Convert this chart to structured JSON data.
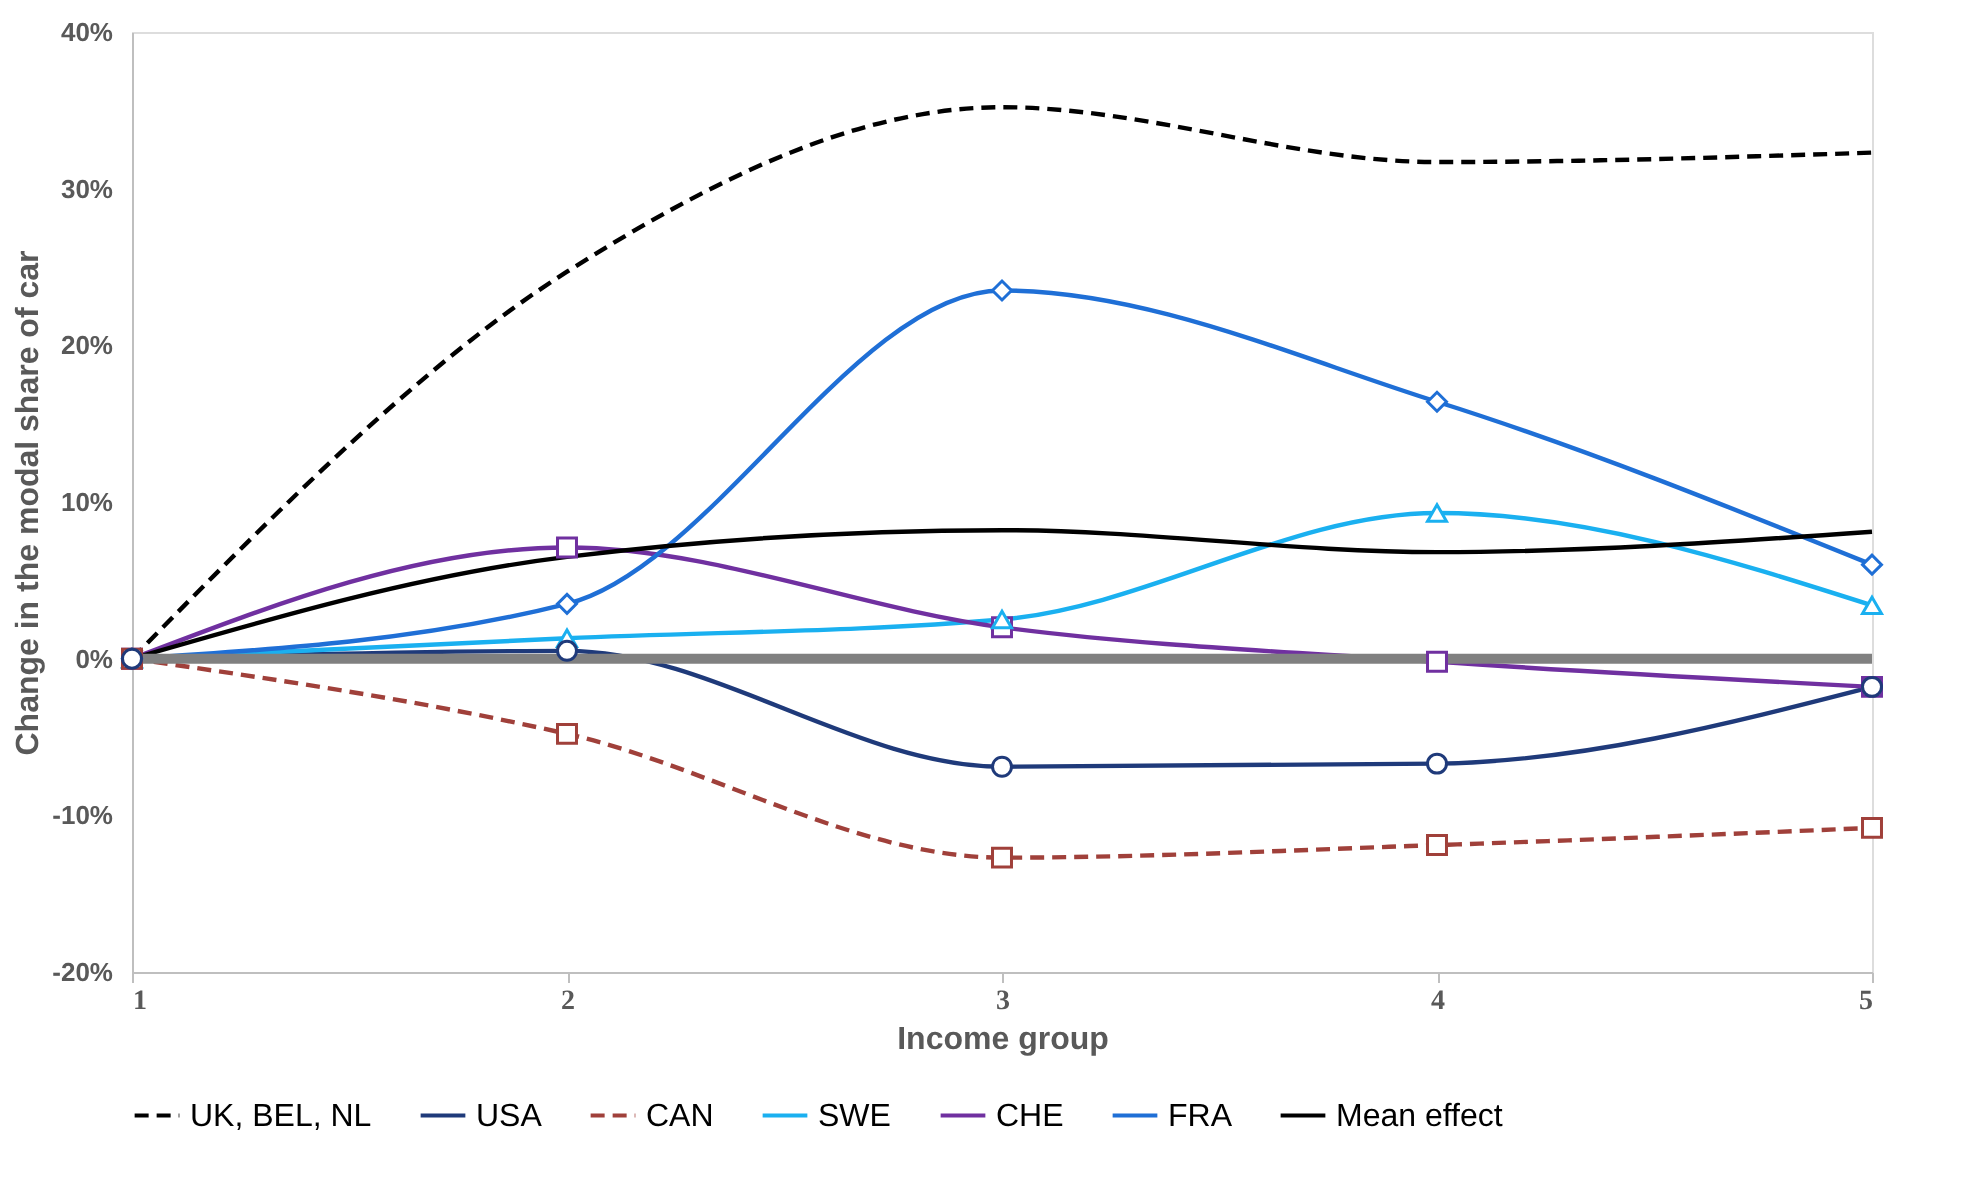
{
  "chart_data": {
    "type": "line",
    "xlabel": "Income group",
    "ylabel": "Change in the modal share of car",
    "x": [
      1,
      2,
      3,
      4,
      5
    ],
    "xlim": [
      1,
      5
    ],
    "xticks": [
      1,
      2,
      3,
      4,
      5
    ],
    "ylim": [
      -20,
      40
    ],
    "yticks": [
      {
        "value": -20,
        "label": "-20%"
      },
      {
        "value": -10,
        "label": "-10%"
      },
      {
        "value": 0,
        "label": "0%"
      },
      {
        "value": 10,
        "label": "10%"
      },
      {
        "value": 20,
        "label": "20%"
      },
      {
        "value": 30,
        "label": "30%"
      },
      {
        "value": 40,
        "label": "40%"
      }
    ],
    "grid": false,
    "legend": "bottom",
    "ref_lines": [
      {
        "axis": "y",
        "value": 0,
        "color": "#808080"
      }
    ],
    "series": [
      {
        "name": "UK, BEL, NL",
        "color": "#000000",
        "line_style": "dashed",
        "marker": "none",
        "values": [
          0,
          24.7,
          35.2,
          31.7,
          32.3
        ]
      },
      {
        "name": "USA",
        "color": "#1f3a7a",
        "line_style": "solid",
        "marker": "circle",
        "values": [
          0,
          0.5,
          -6.9,
          -6.7,
          -1.8
        ]
      },
      {
        "name": "CAN",
        "color": "#a0403a",
        "line_style": "dashed",
        "marker": "square",
        "values": [
          0,
          -4.8,
          -12.7,
          -11.9,
          -10.8
        ]
      },
      {
        "name": "SWE",
        "color": "#1ab0f0",
        "line_style": "solid",
        "marker": "triangle",
        "values": [
          0,
          1.3,
          2.5,
          9.3,
          3.4
        ]
      },
      {
        "name": "CHE",
        "color": "#7030a0",
        "line_style": "solid",
        "marker": "square",
        "values": [
          0,
          7.1,
          2.0,
          -0.2,
          -1.8
        ]
      },
      {
        "name": "FRA",
        "color": "#1f6fd6",
        "line_style": "solid",
        "marker": "diamond",
        "values": [
          0,
          3.5,
          23.5,
          16.4,
          6.0
        ]
      },
      {
        "name": "Mean effect",
        "color": "#000000",
        "line_style": "solid",
        "marker": "none",
        "values": [
          0,
          6.5,
          8.2,
          6.8,
          8.1
        ]
      }
    ]
  }
}
